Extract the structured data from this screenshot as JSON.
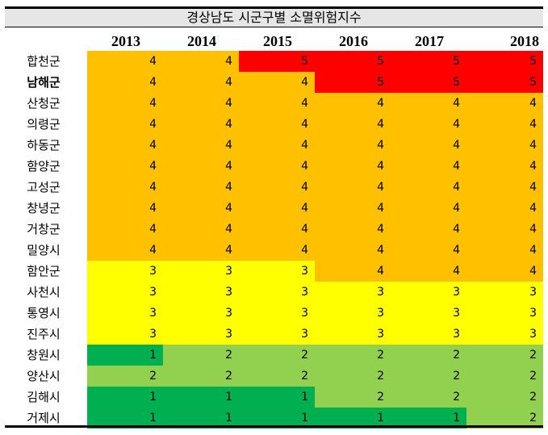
{
  "title": "경상남도 시군구별 소멸위험지수",
  "chart_data": {
    "type": "table",
    "title": "경상남도 시군구별 소멸위험지수",
    "columns": [
      "2013",
      "2014",
      "2015",
      "2016",
      "2017",
      "2018"
    ],
    "rows": [
      {
        "name": "합천군",
        "bold": false,
        "values": [
          4,
          4,
          5,
          5,
          5,
          5
        ]
      },
      {
        "name": "남해군",
        "bold": true,
        "values": [
          4,
          4,
          4,
          5,
          5,
          5
        ]
      },
      {
        "name": "산청군",
        "bold": false,
        "values": [
          4,
          4,
          4,
          4,
          4,
          4
        ]
      },
      {
        "name": "의령군",
        "bold": false,
        "values": [
          4,
          4,
          4,
          4,
          4,
          4
        ]
      },
      {
        "name": "하동군",
        "bold": false,
        "values": [
          4,
          4,
          4,
          4,
          4,
          4
        ]
      },
      {
        "name": "함양군",
        "bold": false,
        "values": [
          4,
          4,
          4,
          4,
          4,
          4
        ]
      },
      {
        "name": "고성군",
        "bold": false,
        "values": [
          4,
          4,
          4,
          4,
          4,
          4
        ]
      },
      {
        "name": "창녕군",
        "bold": false,
        "values": [
          4,
          4,
          4,
          4,
          4,
          4
        ]
      },
      {
        "name": "거창군",
        "bold": false,
        "values": [
          4,
          4,
          4,
          4,
          4,
          4
        ]
      },
      {
        "name": "밀양시",
        "bold": false,
        "values": [
          4,
          4,
          4,
          4,
          4,
          4
        ]
      },
      {
        "name": "함안군",
        "bold": false,
        "values": [
          3,
          3,
          3,
          4,
          4,
          4
        ]
      },
      {
        "name": "사천시",
        "bold": false,
        "values": [
          3,
          3,
          3,
          3,
          3,
          3
        ]
      },
      {
        "name": "통영시",
        "bold": false,
        "values": [
          3,
          3,
          3,
          3,
          3,
          3
        ]
      },
      {
        "name": "진주시",
        "bold": false,
        "values": [
          3,
          3,
          3,
          3,
          3,
          3
        ]
      },
      {
        "name": "창원시",
        "bold": false,
        "values": [
          1,
          2,
          2,
          2,
          2,
          2
        ]
      },
      {
        "name": "양산시",
        "bold": false,
        "values": [
          2,
          2,
          2,
          2,
          2,
          2
        ]
      },
      {
        "name": "김해시",
        "bold": false,
        "values": [
          1,
          1,
          1,
          2,
          2,
          2
        ]
      },
      {
        "name": "거제시",
        "bold": false,
        "values": [
          1,
          1,
          1,
          1,
          1,
          2
        ]
      }
    ],
    "colors": {
      "1": "#00b050",
      "2": "#92d050",
      "3": "#ffff00",
      "4": "#ffc000",
      "5": "#ff0000"
    }
  }
}
